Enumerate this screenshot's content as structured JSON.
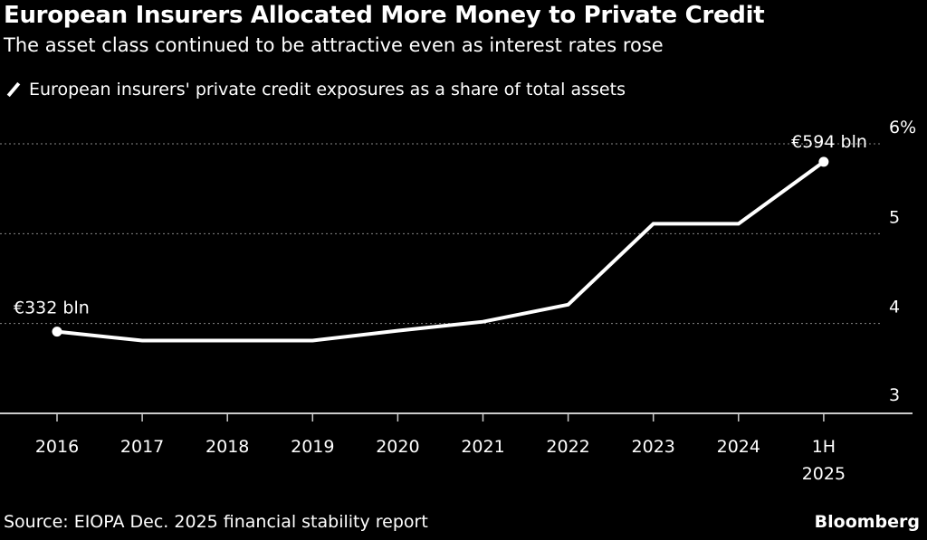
{
  "chart_data": {
    "type": "line",
    "title": "European Insurers Allocated More Money to Private Credit",
    "subtitle": "The asset class continued to be attractive even as interest rates rose",
    "categories": [
      "2016",
      "2017",
      "2018",
      "2019",
      "2020",
      "2021",
      "2022",
      "2023",
      "2024",
      "1H 2025"
    ],
    "category_labels": [
      [
        "2016"
      ],
      [
        "2017"
      ],
      [
        "2018"
      ],
      [
        "2019"
      ],
      [
        "2020"
      ],
      [
        "2021"
      ],
      [
        "2022"
      ],
      [
        "2023"
      ],
      [
        "2024"
      ],
      [
        "1H",
        "2025"
      ]
    ],
    "series": [
      {
        "name": "European insurers' private credit exposures as a share of total assets",
        "values": [
          3.91,
          3.81,
          3.81,
          3.81,
          3.92,
          4.02,
          4.21,
          5.11,
          5.11,
          5.8
        ],
        "color": "#ffffff"
      }
    ],
    "annotations": [
      {
        "category": "2016",
        "text": "€332 bln"
      },
      {
        "category": "1H 2025",
        "text": "€594 bln"
      }
    ],
    "ylim": [
      3,
      6
    ],
    "yticks": [
      3,
      4,
      5,
      6
    ],
    "ytick_labels": [
      "3",
      "4",
      "5",
      "6%"
    ],
    "yaxis_position": "right",
    "grid": true,
    "legend": "top-left",
    "xlabel": "",
    "ylabel": ""
  },
  "source": "Source: EIOPA Dec. 2025 financial stability report",
  "brand": "Bloomberg",
  "colors": {
    "background": "#000000",
    "line": "#ffffff",
    "grid": "#888888"
  }
}
